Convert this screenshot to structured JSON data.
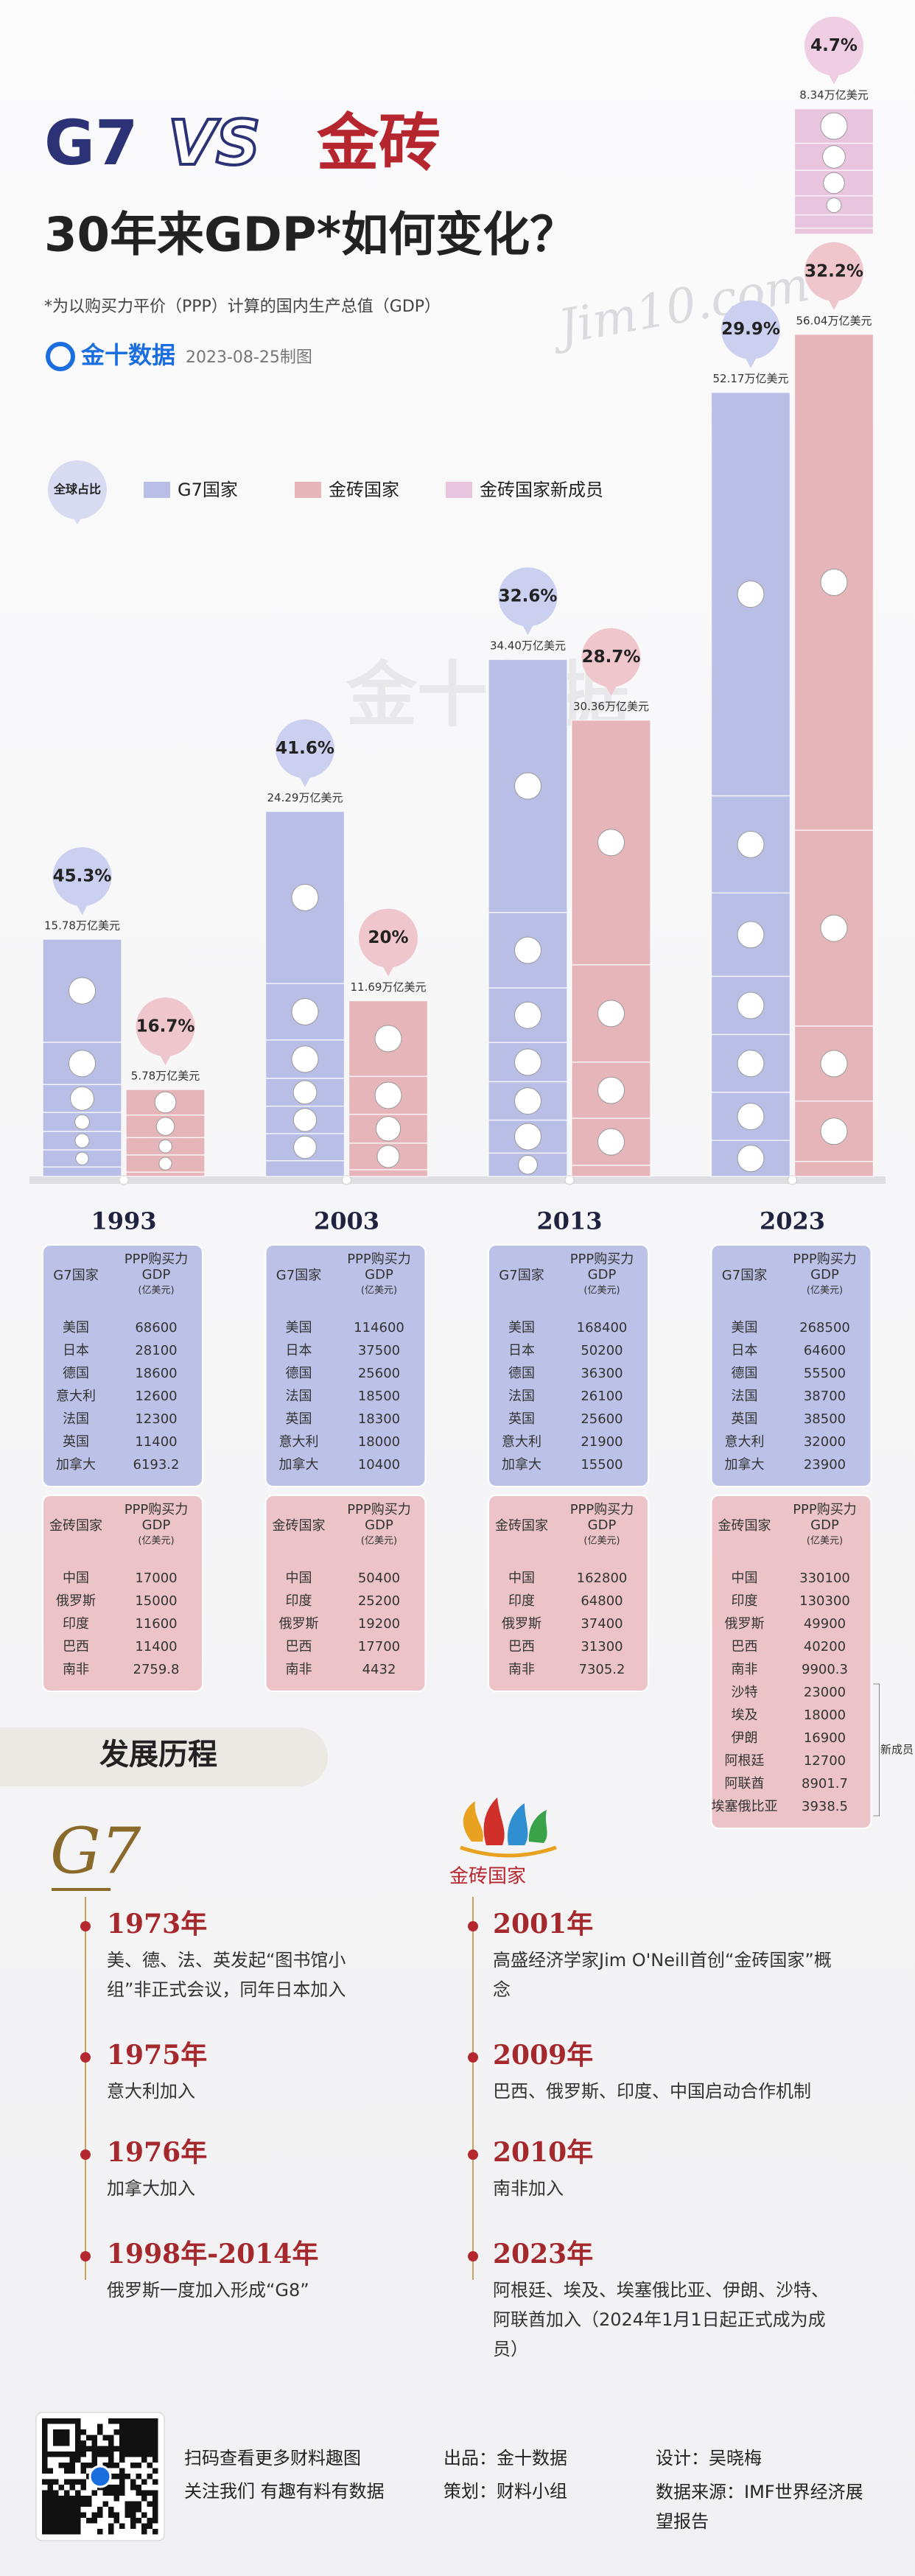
{
  "header": {
    "title_left": "G7",
    "title_vs": "VS",
    "title_right": "金砖",
    "title": "30年来GDP*如何变化？",
    "footnote": "*为以购买力平价（PPP）计算的国内生产总值（GDP）",
    "brand": "金十数据",
    "date": "2023-08-25制图",
    "watermarks": [
      "Jim10.com",
      "金十数据"
    ]
  },
  "chart_data": {
    "type": "grouped-stacked-bar",
    "legend_title": "全球占比",
    "series": [
      {
        "name": "G7国家",
        "color": "#b9bee6"
      },
      {
        "name": "金砖国家",
        "color": "#e5b5ba"
      },
      {
        "name": "金砖国家新成员",
        "color": "#e9c4de"
      }
    ],
    "groups": [
      {
        "year": "1993",
        "bars": [
          {
            "total": 15.78,
            "total_label": "15.78万亿美元",
            "share": 45.3,
            "share_label": "45.3%",
            "table": {
              "group": "G7国家",
              "metric": [
                "PPP购买力",
                "GDP",
                "(亿美元)"
              ],
              "countries": [
                "美国",
                "日本",
                "德国",
                "意大利",
                "法国",
                "英国",
                "加拿大"
              ],
              "values": [
                68600,
                28100,
                18600,
                12600,
                12300,
                11400,
                6193.2
              ]
            }
          },
          {
            "total": 5.78,
            "total_label": "5.78万亿美元",
            "share": 16.7,
            "share_label": "16.7%",
            "table": {
              "group": "金砖国家",
              "metric": [
                "PPP购买力",
                "GDP",
                "(亿美元)"
              ],
              "countries": [
                "中国",
                "俄罗斯",
                "印度",
                "巴西",
                "南非"
              ],
              "values": [
                17000,
                15000,
                11600,
                11400,
                2759.8
              ]
            }
          }
        ]
      },
      {
        "year": "2003",
        "bars": [
          {
            "total": 24.29,
            "total_label": "24.29万亿美元",
            "share": 41.6,
            "share_label": "41.6%",
            "table": {
              "group": "G7国家",
              "metric": [
                "PPP购买力",
                "GDP",
                "(亿美元)"
              ],
              "countries": [
                "美国",
                "日本",
                "德国",
                "法国",
                "英国",
                "意大利",
                "加拿大"
              ],
              "values": [
                114600,
                37500,
                25600,
                18500,
                18300,
                18000,
                10400
              ]
            }
          },
          {
            "total": 11.69,
            "total_label": "11.69万亿美元",
            "share": 20,
            "share_label": "20%",
            "table": {
              "group": "金砖国家",
              "metric": [
                "PPP购买力",
                "GDP",
                "(亿美元)"
              ],
              "countries": [
                "中国",
                "印度",
                "俄罗斯",
                "巴西",
                "南非"
              ],
              "values": [
                50400,
                25200,
                19200,
                17700,
                4432
              ]
            }
          }
        ]
      },
      {
        "year": "2013",
        "bars": [
          {
            "total": 34.4,
            "total_label": "34.40万亿美元",
            "share": 32.6,
            "share_label": "32.6%",
            "table": {
              "group": "G7国家",
              "metric": [
                "PPP购买力",
                "GDP",
                "(亿美元)"
              ],
              "countries": [
                "美国",
                "日本",
                "德国",
                "法国",
                "英国",
                "意大利",
                "加拿大"
              ],
              "values": [
                168400,
                50200,
                36300,
                26100,
                25600,
                21900,
                15500
              ]
            }
          },
          {
            "total": 30.36,
            "total_label": "30.36万亿美元",
            "share": 28.7,
            "share_label": "28.7%",
            "table": {
              "group": "金砖国家",
              "metric": [
                "PPP购买力",
                "GDP",
                "(亿美元)"
              ],
              "countries": [
                "中国",
                "印度",
                "俄罗斯",
                "巴西",
                "南非"
              ],
              "values": [
                162800,
                64800,
                37400,
                31300,
                7305.2
              ]
            }
          }
        ]
      },
      {
        "year": "2023",
        "bars": [
          {
            "total": 52.17,
            "total_label": "52.17万亿美元",
            "share": 29.9,
            "share_label": "29.9%",
            "table": {
              "group": "G7国家",
              "metric": [
                "PPP购买力",
                "GDP",
                "(亿美元)"
              ],
              "countries": [
                "美国",
                "日本",
                "德国",
                "法国",
                "英国",
                "意大利",
                "加拿大"
              ],
              "values": [
                268500,
                64600,
                55500,
                38700,
                38500,
                32000,
                23900
              ]
            }
          },
          {
            "total": 56.04,
            "total_label": "56.04万亿美元",
            "share": 32.2,
            "share_label": "32.2%",
            "table": {
              "group": "金砖国家",
              "metric": [
                "PPP购买力",
                "GDP",
                "(亿美元)"
              ],
              "countries": [
                "中国",
                "印度",
                "俄罗斯",
                "巴西",
                "南非"
              ],
              "values": [
                330100,
                130300,
                49900,
                40200,
                9900.3
              ],
              "new_countries": [
                "沙特",
                "埃及",
                "伊朗",
                "阿根廷",
                "阿联酋",
                "埃塞俄比亚"
              ],
              "new_values": [
                23000,
                18000,
                16900,
                12700,
                8901.7,
                3938.5
              ],
              "new_label": "新成员"
            }
          },
          {
            "total": 8.34,
            "total_label": "8.34万亿美元",
            "share": 4.7,
            "share_label": "4.7%"
          }
        ]
      }
    ]
  },
  "history": {
    "title": "发展历程",
    "g7_logo": "G7",
    "brics_logo": "金砖国家",
    "g7_events": [
      {
        "year": "1973年",
        "text": "美、德、法、英发起“图书馆小组”非正式会议，同年日本加入"
      },
      {
        "year": "1975年",
        "text": "意大利加入"
      },
      {
        "year": "1976年",
        "text": "加拿大加入"
      },
      {
        "year": "1998年-2014年",
        "text": "俄罗斯一度加入形成“G8”"
      }
    ],
    "brics_events": [
      {
        "year": "2001年",
        "text": "高盛经济学家Jim O'Neill首创“金砖国家”概念"
      },
      {
        "year": "2009年",
        "text": "巴西、俄罗斯、印度、中国启动合作机制"
      },
      {
        "year": "2010年",
        "text": "南非加入"
      },
      {
        "year": "2023年",
        "text": "阿根廷、埃及、埃塞俄比亚、伊朗、沙特、阿联酋加入（2024年1月1日起正式成为成员）"
      }
    ]
  },
  "footer": {
    "qr_caption": [
      "扫码查看更多财料趣图",
      "关注我们 有趣有料有数据"
    ],
    "credits": [
      "出品：金十数据",
      "策划：财料小组",
      "设计：吴晓梅",
      "数据来源：IMF世界经济展望报告"
    ]
  }
}
